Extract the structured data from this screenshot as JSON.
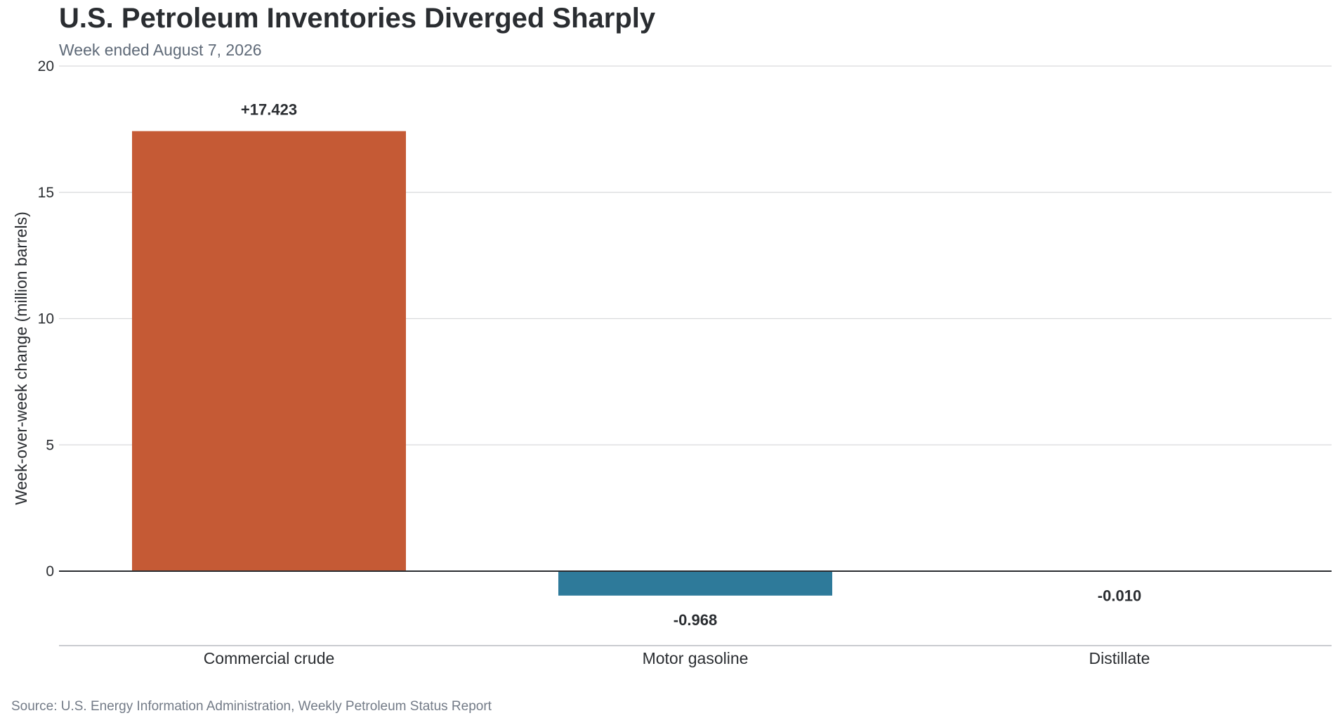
{
  "header": {
    "title": "U.S. Petroleum Inventories Diverged Sharply",
    "subtitle": "Week ended August 7, 2026"
  },
  "footer": {
    "source": "Source: U.S. Energy Information Administration, Weekly Petroleum Status Report"
  },
  "chart_data": {
    "type": "bar",
    "categories": [
      "Commercial crude",
      "Motor gasoline",
      "Distillate"
    ],
    "values": [
      17.423,
      -0.968,
      -0.01
    ],
    "data_labels": [
      "+17.423",
      "-0.968",
      "-0.010"
    ],
    "bar_colors": [
      "#c55a35",
      "#2e7a9a",
      "#2e7a9a"
    ],
    "ylabel": "Week-over-week change (million barrels)",
    "xlabel": "",
    "ylim": [
      -3,
      20
    ],
    "yticks": [
      0,
      5,
      10,
      15,
      20
    ],
    "grid": true,
    "grid_color": "#d9dadc",
    "zero_line_color": "#2a2d31"
  }
}
